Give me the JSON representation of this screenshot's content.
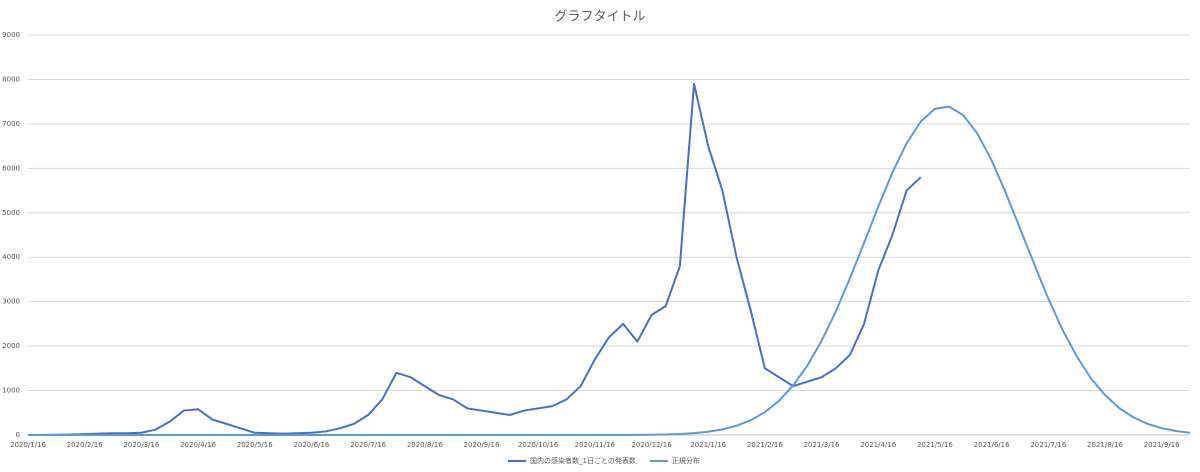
{
  "chart_data": {
    "type": "line",
    "title": "グラフタイトル",
    "categories": [
      "2020/1/16",
      null,
      null,
      null,
      "2020/2/16",
      null,
      null,
      null,
      "2020/3/16",
      null,
      null,
      null,
      "2020/4/16",
      null,
      null,
      null,
      "2020/5/16",
      null,
      null,
      null,
      "2020/6/16",
      null,
      null,
      null,
      "2020/7/16",
      null,
      null,
      null,
      "2020/8/16",
      null,
      null,
      null,
      "2020/9/16",
      null,
      null,
      null,
      "2020/10/16",
      null,
      null,
      null,
      "2020/11/16",
      null,
      null,
      null,
      "2020/12/16",
      null,
      null,
      null,
      "2021/1/16",
      null,
      null,
      null,
      "2021/2/16",
      null,
      null,
      null,
      "2021/3/16",
      null,
      null,
      null,
      "2021/4/16",
      null,
      null,
      null,
      "2021/5/16",
      null,
      null,
      null,
      "2021/6/16",
      null,
      null,
      null,
      "2021/7/16",
      null,
      null,
      null,
      "2021/8/16",
      null,
      null,
      null,
      "2021/9/16",
      null,
      null
    ],
    "series": [
      {
        "name": "国内の感染者数_1日ごとの発表数",
        "color": "#4472c4",
        "values": [
          0,
          0,
          5,
          10,
          20,
          30,
          40,
          40,
          50,
          120,
          300,
          550,
          580,
          350,
          250,
          150,
          50,
          40,
          30,
          40,
          50,
          80,
          150,
          250,
          450,
          800,
          1400,
          1300,
          1100,
          900,
          800,
          600,
          550,
          500,
          450,
          550,
          600,
          650,
          800,
          1100,
          1700,
          2200,
          2500,
          2100,
          2700,
          2900,
          3800,
          7900,
          6500,
          5500,
          4000,
          2800,
          1500,
          1300,
          1100,
          1200,
          1300,
          1500,
          1800,
          2500,
          3700,
          4500,
          5500,
          5800,
          null,
          null,
          null,
          null,
          null,
          null,
          null,
          null,
          null,
          null,
          null,
          null,
          null,
          null,
          null,
          null,
          null,
          null,
          null
        ]
      },
      {
        "name": "正規分布",
        "color": "#5b9bd5",
        "values": [
          0,
          0,
          0,
          0,
          0,
          0,
          0,
          0,
          0,
          0,
          0,
          0,
          0,
          0,
          0,
          0,
          0,
          0,
          0,
          0,
          0,
          0,
          0,
          0,
          0,
          0,
          0,
          0,
          0,
          0,
          0,
          0,
          0,
          0,
          0,
          0,
          0,
          0,
          0,
          0,
          0,
          1,
          1,
          3,
          6,
          12,
          23,
          42,
          74,
          126,
          208,
          333,
          514,
          769,
          1117,
          1562,
          2117,
          2778,
          3523,
          4325,
          5137,
          5902,
          6562,
          7055,
          7340,
          7389,
          7196,
          6780,
          6181,
          5449,
          4651,
          3850,
          3068,
          2370,
          1775,
          1280,
          899,
          608,
          399,
          252,
          155,
          91,
          52
        ]
      }
    ],
    "ylim": [
      0,
      9000
    ],
    "yticks": [
      0,
      1000,
      2000,
      3000,
      4000,
      5000,
      6000,
      7000,
      8000,
      9000
    ],
    "grid": true
  }
}
